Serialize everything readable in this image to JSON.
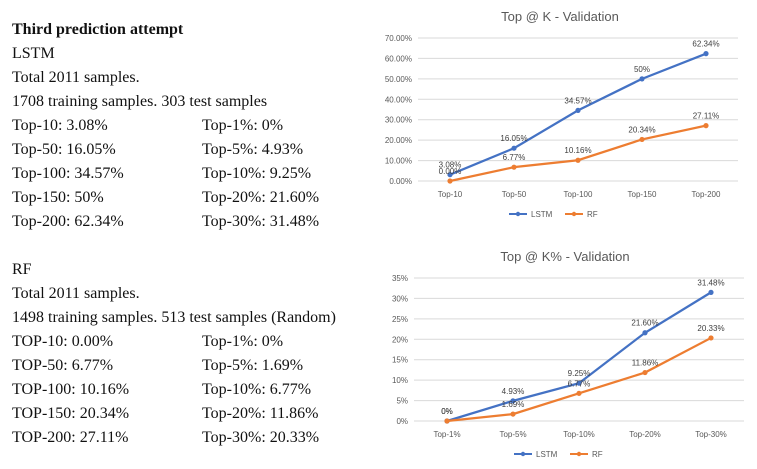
{
  "doc": {
    "heading": "Third prediction attempt",
    "lstm": {
      "label": "LSTM",
      "total": "Total 2011 samples.",
      "split": "1708 training samples. 303 test samples",
      "rows": [
        [
          "Top-10: 3.08%",
          "Top-1%: 0%"
        ],
        [
          "Top-50: 16.05%",
          "Top-5%: 4.93%"
        ],
        [
          "Top-100: 34.57%",
          "Top-10%: 9.25%"
        ],
        [
          "Top-150: 50%",
          "Top-20%: 21.60%"
        ],
        [
          "Top-200: 62.34%",
          "Top-30%: 31.48%"
        ]
      ]
    },
    "rf": {
      "label": "RF",
      "total": "Total 2011 samples.",
      "split": "1498 training samples. 513 test samples (Random)",
      "rows": [
        [
          "TOP-10: 0.00%",
          "Top-1%: 0%"
        ],
        [
          "TOP-50: 6.77%",
          "Top-5%: 1.69%"
        ],
        [
          "TOP-100: 10.16%",
          "Top-10%: 6.77%"
        ],
        [
          "TOP-150: 20.34%",
          "Top-20%: 11.86%"
        ],
        [
          "TOP-200: 27.11%",
          "Top-30%: 20.33%"
        ]
      ]
    }
  },
  "colors": {
    "lstm": "#4472C4",
    "rf": "#ED7D31",
    "grid": "#D9D9D9",
    "text": "#595959"
  },
  "chart_data": [
    {
      "type": "line",
      "title": "Top @ K - Validation",
      "categories": [
        "Top-10",
        "Top-50",
        "Top-100",
        "Top-150",
        "Top-200"
      ],
      "ylim": [
        0,
        70
      ],
      "yticks": [
        "0.00%",
        "10.00%",
        "20.00%",
        "30.00%",
        "40.00%",
        "50.00%",
        "60.00%",
        "70.00%"
      ],
      "grid": true,
      "legend": "bottom",
      "series": [
        {
          "name": "LSTM",
          "values": [
            3.08,
            16.05,
            34.57,
            50,
            62.34
          ],
          "labels": [
            "3.08%",
            "16.05%",
            "34.57%",
            "50%",
            "62.34%"
          ]
        },
        {
          "name": "RF",
          "values": [
            0,
            6.77,
            10.16,
            20.34,
            27.11
          ],
          "labels": [
            "0.00%",
            "6.77%",
            "10.16%",
            "20.34%",
            "27.11%"
          ]
        }
      ]
    },
    {
      "type": "line",
      "title": "Top @ K% - Validation",
      "categories": [
        "Top-1%",
        "Top-5%",
        "Top-10%",
        "Top-20%",
        "Top-30%"
      ],
      "ylim": [
        0,
        35
      ],
      "yticks": [
        "0%",
        "5%",
        "10%",
        "15%",
        "20%",
        "25%",
        "30%",
        "35%"
      ],
      "grid": true,
      "legend": "bottom",
      "series": [
        {
          "name": "LSTM",
          "values": [
            0,
            4.93,
            9.25,
            21.6,
            31.48
          ],
          "labels": [
            "0%",
            "4.93%",
            "9.25%",
            "21.60%",
            "31.48%"
          ]
        },
        {
          "name": "RF",
          "values": [
            0,
            1.69,
            6.77,
            11.86,
            20.33
          ],
          "labels": [
            "0%",
            "1.69%",
            "6.77%",
            "11.86%",
            "20.33%"
          ]
        }
      ]
    }
  ]
}
